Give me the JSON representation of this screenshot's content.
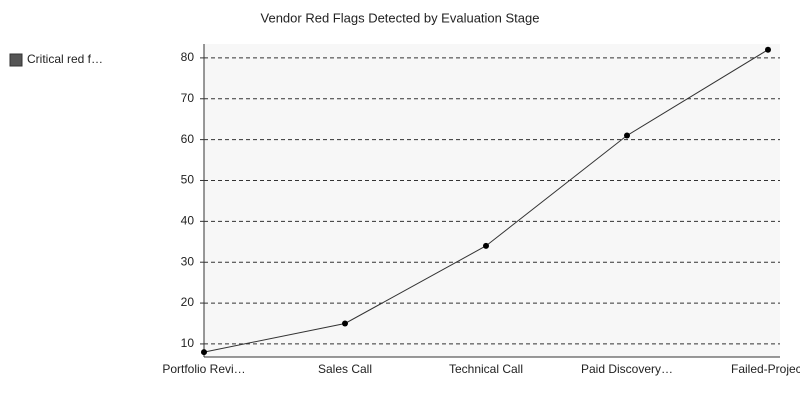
{
  "chart_data": {
    "type": "line",
    "title": "Vendor Red Flags Detected by Evaluation Stage",
    "categories": [
      "Portfolio Revi…",
      "Sales Call",
      "Technical Call",
      "Paid Discovery…",
      "Failed-Project"
    ],
    "series": [
      {
        "name": "Critical red f…",
        "color": "#333333",
        "values": [
          8,
          15,
          34,
          61,
          82
        ]
      }
    ],
    "ylim": [
      6.8,
      83.4
    ],
    "yticks": [
      10,
      20,
      30,
      40,
      50,
      60,
      70,
      80
    ],
    "grid": true,
    "legend": "left"
  }
}
